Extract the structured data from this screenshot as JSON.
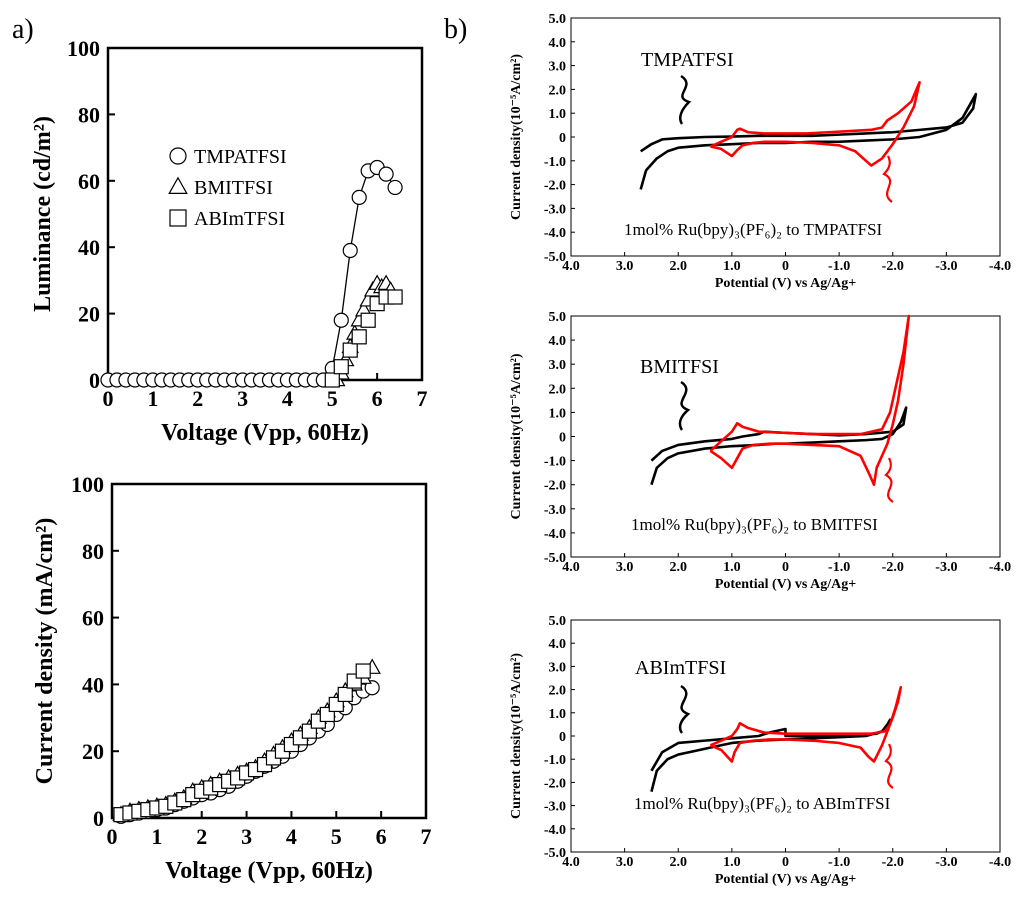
{
  "panel_labels": [
    "a)",
    "b)"
  ],
  "colors": {
    "trace_black": "#000000",
    "trace_red": "#ff0000",
    "axis": "#000000"
  },
  "chart_data": [
    {
      "id": "a-top",
      "type": "scatter",
      "title": "",
      "xlabel": "Voltage (Vpp, 60Hz)",
      "ylabel": "Luminance (cd/m²)",
      "xlim": [
        0,
        7
      ],
      "ylim": [
        0,
        100
      ],
      "xticks": [
        "0",
        "1",
        "2",
        "3",
        "4",
        "5",
        "6",
        "7"
      ],
      "yticks": [
        "0",
        "20",
        "40",
        "60",
        "80",
        "100"
      ],
      "legend": [
        "TMPATFSI",
        "BMITFSI",
        "ABImTFSI"
      ],
      "series": [
        {
          "name": "TMPATFSI",
          "marker": "circle",
          "line": true,
          "x": [
            0.0,
            0.2,
            0.4,
            0.6,
            0.8,
            1.0,
            1.2,
            1.4,
            1.6,
            1.8,
            2.0,
            2.2,
            2.4,
            2.6,
            2.8,
            3.0,
            3.2,
            3.4,
            3.6,
            3.8,
            4.0,
            4.2,
            4.4,
            4.6,
            4.8,
            5.0,
            5.2,
            5.4,
            5.6,
            5.8,
            6.0,
            6.2,
            6.4
          ],
          "y": [
            0,
            0,
            0,
            0,
            0,
            0,
            0,
            0,
            0,
            0,
            0,
            0,
            0,
            0,
            0,
            0,
            0,
            0,
            0,
            0,
            0,
            0,
            0,
            0,
            0,
            3.5,
            18,
            39,
            55,
            63,
            64,
            62,
            58
          ]
        },
        {
          "name": "BMITFSI",
          "marker": "triangle",
          "line": false,
          "x": [
            5.1,
            5.2,
            5.3,
            5.4,
            5.5,
            5.6,
            5.7,
            5.8,
            5.9,
            6.0,
            6.1,
            6.2,
            6.3
          ],
          "y": [
            0,
            2,
            6,
            10,
            14,
            18,
            21,
            24,
            27,
            29,
            28,
            29,
            27
          ]
        },
        {
          "name": "ABImTFSI",
          "marker": "square",
          "line": false,
          "x": [
            5.0,
            5.2,
            5.4,
            5.6,
            5.8,
            6.0,
            6.2,
            6.4
          ],
          "y": [
            0,
            4,
            9,
            13,
            18,
            23,
            25,
            25
          ]
        }
      ]
    },
    {
      "id": "a-bottom",
      "type": "scatter",
      "title": "",
      "xlabel": "Voltage (Vpp, 60Hz)",
      "ylabel": "Current density (mA/cm²)",
      "xlim": [
        0,
        7
      ],
      "ylim": [
        0,
        100
      ],
      "xticks": [
        "0",
        "1",
        "2",
        "3",
        "4",
        "5",
        "6",
        "7"
      ],
      "yticks": [
        "0",
        "20",
        "40",
        "60",
        "80",
        "100"
      ],
      "series": [
        {
          "name": "TMPATFSI",
          "marker": "circle",
          "x": [
            0.2,
            0.4,
            0.6,
            0.8,
            1.0,
            1.2,
            1.4,
            1.6,
            1.8,
            2.0,
            2.2,
            2.4,
            2.6,
            2.8,
            3.0,
            3.2,
            3.4,
            3.6,
            3.8,
            4.0,
            4.2,
            4.4,
            4.6,
            4.8,
            5.0,
            5.2,
            5.4,
            5.6,
            5.8
          ],
          "y": [
            0.5,
            1,
            1.5,
            2,
            2.5,
            3,
            4,
            5,
            6,
            7,
            7.5,
            8.5,
            9.5,
            11,
            12.5,
            14,
            15.5,
            17,
            18.5,
            20,
            22,
            24,
            26,
            28,
            31,
            33,
            36,
            38,
            39
          ]
        },
        {
          "name": "BMITFSI",
          "marker": "triangle",
          "x": [
            0.2,
            0.4,
            0.6,
            0.8,
            1.0,
            1.2,
            1.4,
            1.6,
            1.8,
            2.0,
            2.2,
            2.4,
            2.6,
            2.8,
            3.0,
            3.2,
            3.4,
            3.6,
            3.8,
            4.0,
            4.2,
            4.4,
            4.6,
            4.8,
            5.0,
            5.2,
            5.4,
            5.6,
            5.8
          ],
          "y": [
            1,
            2,
            2.5,
            3,
            3.5,
            4,
            5,
            6,
            8,
            9,
            10,
            11,
            12,
            13,
            14,
            15,
            17,
            19,
            21,
            23,
            25,
            27,
            30,
            32,
            35,
            38,
            40,
            42,
            45
          ]
        },
        {
          "name": "ABImTFSI",
          "marker": "square",
          "x": [
            0.2,
            0.4,
            0.6,
            0.8,
            1.0,
            1.2,
            1.4,
            1.6,
            1.8,
            2.0,
            2.2,
            2.4,
            2.6,
            2.8,
            3.0,
            3.2,
            3.4,
            3.6,
            3.8,
            4.0,
            4.2,
            4.4,
            4.6,
            4.8,
            5.0,
            5.2,
            5.4,
            5.6
          ],
          "y": [
            1,
            1.5,
            2,
            2.5,
            3,
            3.5,
            4.5,
            5.5,
            7,
            8,
            9,
            10,
            11,
            12,
            13.5,
            14.5,
            16,
            18,
            20,
            22,
            24,
            26,
            29,
            31,
            34,
            37,
            41,
            44
          ]
        }
      ]
    },
    {
      "id": "b-1",
      "type": "line",
      "title": "",
      "xlabel": "Potential (V) vs Ag/Ag+",
      "ylabel": "Current density(10⁻⁵A/cm²)",
      "xlim": [
        4.0,
        -4.0
      ],
      "ylim": [
        -5.0,
        5.0
      ],
      "xticks": [
        "4.0",
        "3.0",
        "2.0",
        "1.0",
        "0",
        "-1.0",
        "-2.0",
        "-3.0",
        "-4.0"
      ],
      "yticks": [
        "5.0",
        "4.0",
        "3.0",
        "2.0",
        "1.0",
        "0",
        "-1.0",
        "-2.0",
        "-3.0",
        "-4.0",
        "-5.0"
      ],
      "annotation_label": "TMPATFSI",
      "note": "1mol% Ru(bpy)₃(PF₆)₂ to TMPATFSI",
      "series": [
        {
          "name": "TMPATFSI",
          "color": "#000000",
          "x": [
            2.7,
            2.6,
            2.4,
            2.2,
            2.0,
            1.5,
            1.0,
            0.5,
            0,
            -0.5,
            -1.0,
            -1.5,
            -2.0,
            -2.5,
            -3.0,
            -3.3,
            -3.45,
            -3.55,
            -3.5,
            -3.3,
            -3.0,
            -2.5,
            -2.0,
            -1.5,
            -1.0,
            -0.5,
            0,
            0.5,
            1.0,
            1.5,
            2.0,
            2.3,
            2.5,
            2.7
          ],
          "y": [
            -2.2,
            -1.4,
            -0.9,
            -0.6,
            -0.45,
            -0.35,
            -0.3,
            -0.25,
            -0.25,
            -0.2,
            -0.2,
            -0.15,
            -0.1,
            0.0,
            0.3,
            0.8,
            1.4,
            1.8,
            1.2,
            0.6,
            0.4,
            0.3,
            0.2,
            0.15,
            0.1,
            0.05,
            0.05,
            0.05,
            0.02,
            0.0,
            -0.05,
            -0.1,
            -0.3,
            -0.6
          ]
        },
        {
          "name": "1mol% Ru(bpy)3(PF6)2",
          "color": "#ff0000",
          "x": [
            1.4,
            1.2,
            1.0,
            0.9,
            0.8,
            0.6,
            0.4,
            0.2,
            0,
            -0.5,
            -1.0,
            -1.3,
            -1.5,
            -1.6,
            -1.8,
            -2.0,
            -2.2,
            -2.4,
            -2.5,
            -2.35,
            -2.1,
            -1.9,
            -1.8,
            -1.6,
            -1.2,
            -0.8,
            -0.4,
            0,
            0.4,
            0.7,
            0.85,
            0.9,
            1.0,
            1.2,
            1.4
          ],
          "y": [
            -0.4,
            -0.5,
            -0.8,
            -0.55,
            -0.35,
            -0.25,
            -0.2,
            -0.2,
            -0.2,
            -0.25,
            -0.35,
            -0.6,
            -1.0,
            -1.2,
            -0.9,
            -0.3,
            0.4,
            1.3,
            2.3,
            1.5,
            1.0,
            0.7,
            0.4,
            0.3,
            0.25,
            0.2,
            0.15,
            0.15,
            0.15,
            0.2,
            0.35,
            0.3,
            0.0,
            -0.2,
            -0.4
          ]
        }
      ]
    },
    {
      "id": "b-2",
      "type": "line",
      "title": "",
      "xlabel": "Potential (V) vs Ag/Ag+",
      "ylabel": "Current density(10⁻⁵A/cm²)",
      "xlim": [
        4.0,
        -4.0
      ],
      "ylim": [
        -5.0,
        5.0
      ],
      "xticks": [
        "4.0",
        "3.0",
        "2.0",
        "1.0",
        "0",
        "-1.0",
        "-2.0",
        "-3.0",
        "-4.0"
      ],
      "yticks": [
        "5.0",
        "4.0",
        "3.0",
        "2.0",
        "1.0",
        "0",
        "-1.0",
        "-2.0",
        "-3.0",
        "-4.0",
        "-5.0"
      ],
      "annotation_label": "BMITFSI",
      "note": "1mol% Ru(bpy)₃(PF₆)₂ to BMITFSI",
      "series": [
        {
          "name": "BMITFSI",
          "color": "#000000",
          "x": [
            2.5,
            2.4,
            2.2,
            2.0,
            1.5,
            1.0,
            0.5,
            0.2,
            0,
            -0.5,
            -1.0,
            -1.5,
            -1.8,
            -2.0,
            -2.15,
            -2.25,
            -2.2,
            -2.0,
            -1.5,
            -1.0,
            -0.5,
            0,
            0.4,
            0.5,
            0.8,
            1.0,
            1.5,
            2.0,
            2.3,
            2.5
          ],
          "y": [
            -2.0,
            -1.3,
            -0.9,
            -0.7,
            -0.5,
            -0.4,
            -0.35,
            -0.3,
            -0.3,
            -0.25,
            -0.2,
            -0.15,
            -0.1,
            0.1,
            0.6,
            1.2,
            0.5,
            0.2,
            0.1,
            0.05,
            0.1,
            0.15,
            0.2,
            0.1,
            0.0,
            -0.1,
            -0.2,
            -0.35,
            -0.6,
            -1.0
          ]
        },
        {
          "name": "1mol% Ru(bpy)3(PF6)2",
          "color": "#ff0000",
          "x": [
            1.4,
            1.2,
            1.0,
            0.9,
            0.8,
            0.6,
            0.3,
            0,
            -0.5,
            -1.0,
            -1.4,
            -1.55,
            -1.65,
            -1.7,
            -1.9,
            -2.0,
            -2.1,
            -2.2,
            -2.3,
            -2.2,
            -2.05,
            -1.95,
            -1.8,
            -1.4,
            -1.0,
            -0.5,
            0,
            0.5,
            0.8,
            0.9,
            1.0,
            1.2,
            1.4
          ],
          "y": [
            -0.6,
            -0.9,
            -1.3,
            -0.9,
            -0.5,
            -0.35,
            -0.3,
            -0.3,
            -0.35,
            -0.4,
            -0.8,
            -1.5,
            -2.0,
            -1.3,
            -0.3,
            0.5,
            1.5,
            3.0,
            5.0,
            3.5,
            2.0,
            1.0,
            0.3,
            0.1,
            0.1,
            0.1,
            0.15,
            0.2,
            0.4,
            0.55,
            0.2,
            -0.2,
            -0.6
          ]
        }
      ]
    },
    {
      "id": "b-3",
      "type": "line",
      "title": "",
      "xlabel": "Potential (V) vs Ag/Ag+",
      "ylabel": "Current density(10⁻⁵A/cm²)",
      "xlim": [
        4.0,
        -4.0
      ],
      "ylim": [
        -5.0,
        5.0
      ],
      "xticks": [
        "4.0",
        "3.0",
        "2.0",
        "1.0",
        "0",
        "-1.0",
        "-2.0",
        "-3.0",
        "-4.0"
      ],
      "yticks": [
        "5.0",
        "4.0",
        "3.0",
        "2.0",
        "1.0",
        "0",
        "-1.0",
        "-2.0",
        "-3.0",
        "-4.0",
        "-5.0"
      ],
      "annotation_label": "ABImTFSI",
      "note": "1mol% Ru(bpy)₃(PF₆)₂ to ABImTFSI",
      "series": [
        {
          "name": "ABImTFSI",
          "color": "#000000",
          "x": [
            2.5,
            2.4,
            2.2,
            2.0,
            1.8,
            1.5,
            1.2,
            1.0,
            0.5,
            0,
            -0.5,
            -1.0,
            -1.5,
            -1.8,
            -1.9,
            -1.95,
            -1.9,
            -1.7,
            -1.4,
            -1.0,
            -0.5,
            0,
            0,
            0.3,
            0.5,
            1.0,
            1.5,
            2.0,
            2.3,
            2.5
          ],
          "y": [
            -2.4,
            -1.5,
            -1.0,
            -0.8,
            -0.7,
            -0.55,
            -0.4,
            -0.3,
            -0.2,
            -0.15,
            -0.1,
            -0.05,
            0.0,
            0.2,
            0.5,
            0.7,
            0.3,
            0.1,
            0.05,
            0.0,
            0.0,
            0.0,
            0.3,
            0.15,
            0.0,
            -0.1,
            -0.2,
            -0.3,
            -0.7,
            -1.5
          ]
        },
        {
          "name": "1mol% Ru(bpy)3(PF6)2",
          "color": "#ff0000",
          "x": [
            1.4,
            1.2,
            1.0,
            0.95,
            0.85,
            0.6,
            0.3,
            0,
            -0.5,
            -1.0,
            -1.4,
            -1.55,
            -1.65,
            -1.8,
            -1.9,
            -2.0,
            -2.1,
            -2.15,
            -2.05,
            -1.95,
            -1.85,
            -1.6,
            -1.2,
            -0.8,
            -0.4,
            0,
            0.4,
            0.7,
            0.85,
            0.9,
            1.0,
            1.2,
            1.4
          ],
          "y": [
            -0.4,
            -0.6,
            -1.1,
            -0.7,
            -0.3,
            -0.2,
            -0.15,
            -0.15,
            -0.2,
            -0.3,
            -0.5,
            -0.9,
            -1.1,
            -0.4,
            0.2,
            0.8,
            1.5,
            2.1,
            1.2,
            0.5,
            0.2,
            0.1,
            0.1,
            0.1,
            0.1,
            0.1,
            0.15,
            0.35,
            0.55,
            0.3,
            0.0,
            -0.2,
            -0.4
          ]
        }
      ]
    }
  ]
}
